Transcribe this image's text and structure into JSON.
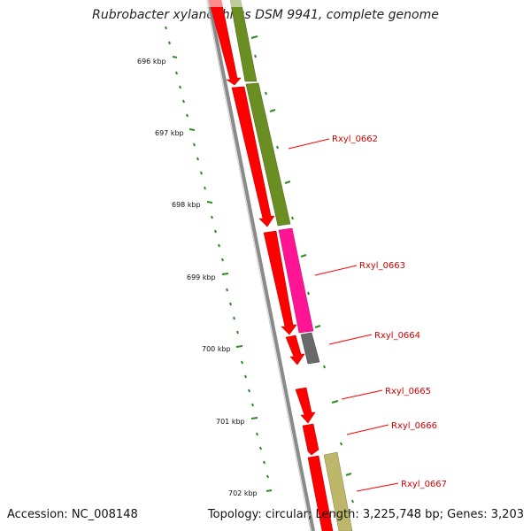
{
  "title": "Rubrobacter xylanophilus DSM 9941, complete genome",
  "footer": {
    "accession": "Accession: NC_008148",
    "summary": "Topology: circular; Length: 3,225,748 bp; Genes: 3,203"
  },
  "scale": {
    "ticks": [
      {
        "label": "696 kbp"
      },
      {
        "label": "697 kbp"
      },
      {
        "label": "698 kbp"
      },
      {
        "label": "699 kbp"
      },
      {
        "label": "700 kbp"
      },
      {
        "label": "701 kbp"
      },
      {
        "label": "702 kbp"
      }
    ]
  },
  "genes": [
    {
      "label": "Rxyl_0662"
    },
    {
      "label": "Rxyl_0663"
    },
    {
      "label": "Rxyl_0664"
    },
    {
      "label": "Rxyl_0665"
    },
    {
      "label": "Rxyl_0666"
    },
    {
      "label": "Rxyl_0667"
    }
  ],
  "colors": {
    "strand_arrows": "#ff0000",
    "rxyl_0662": "#6b8e23",
    "rxyl_0663": "#ff1493",
    "rxyl_0664": "#696969",
    "rxyl_0667": "#bdb76b",
    "gc_skew_ticks": "#008000",
    "label_text": "#d40000"
  }
}
